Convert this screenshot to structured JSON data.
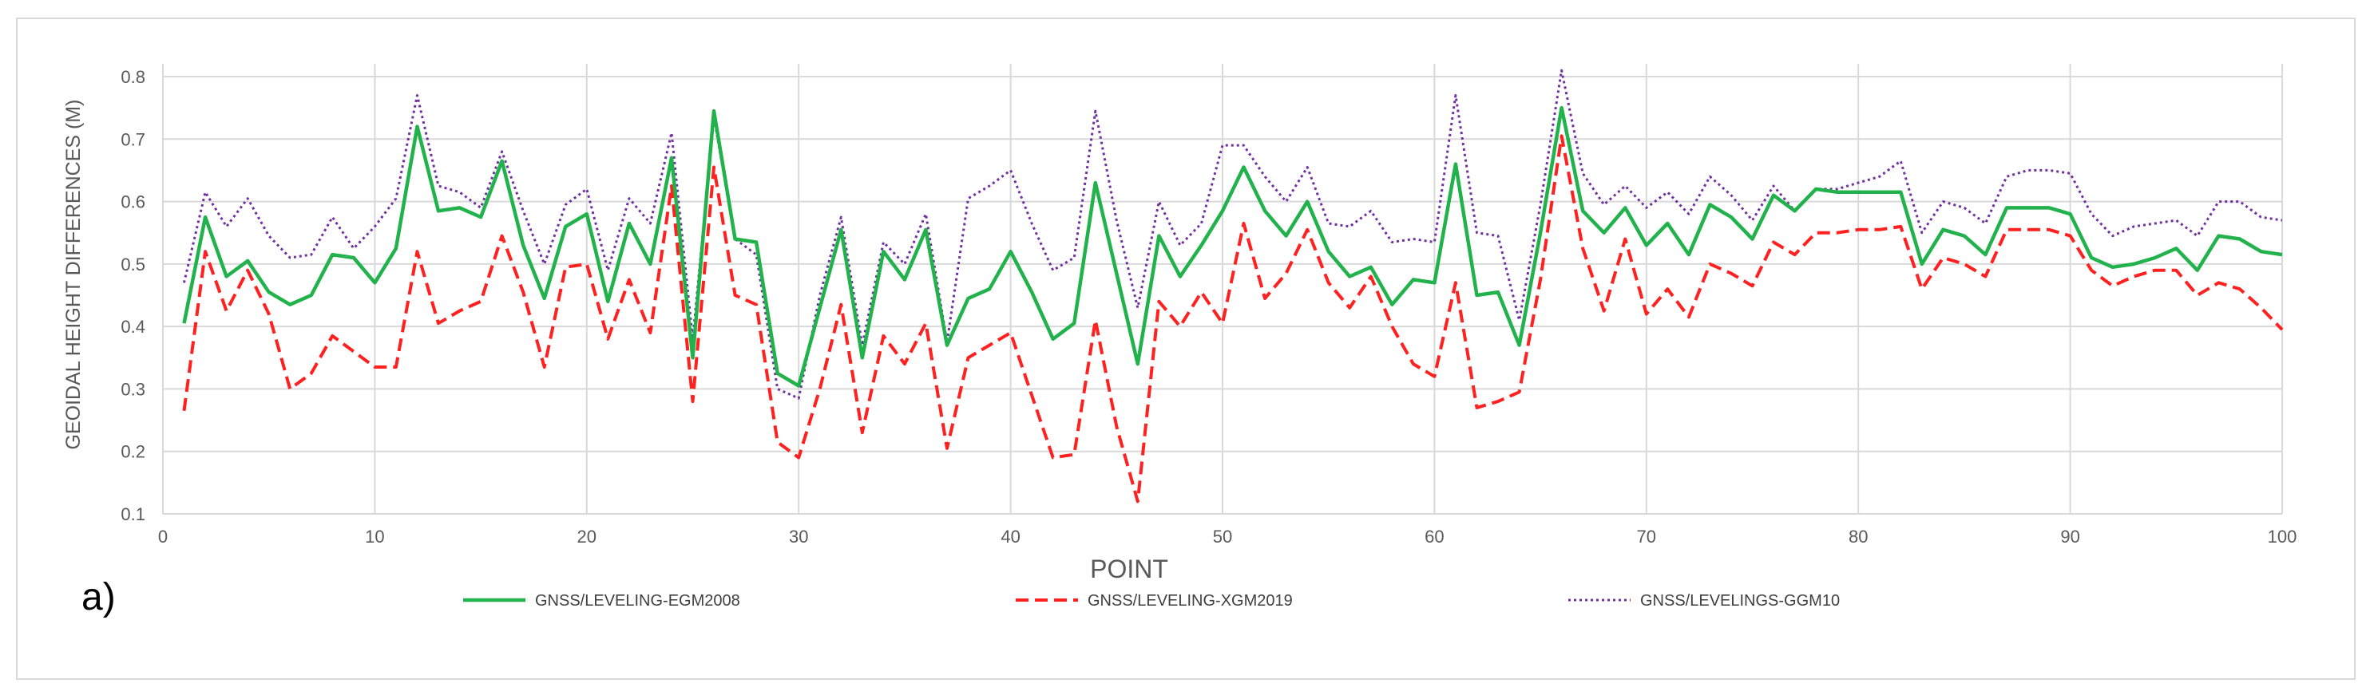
{
  "chart_data": {
    "type": "line",
    "panel_label": "a)",
    "xlabel": "POINT",
    "ylabel": "GEOIDAL HEIGHT DIFFERENCES (M)",
    "xlim": [
      0,
      100
    ],
    "ylim": [
      0.1,
      0.85
    ],
    "xticks": [
      0,
      10,
      20,
      30,
      40,
      50,
      60,
      70,
      80,
      90,
      100
    ],
    "yticks": [
      0.1,
      0.2,
      0.3,
      0.4,
      0.5,
      0.6,
      0.7,
      0.8
    ],
    "ytick_labels": [
      "0.1",
      "0.2",
      "0.3",
      "0.4",
      "0.5",
      "0.6",
      "0.7",
      "0.8"
    ],
    "grid": "horizontal and vertical",
    "legend_position": "bottom",
    "series": [
      {
        "name": "GNSS/LEVELING-EGM2008",
        "color": "#22b24c",
        "style": "solid",
        "x": [
          1,
          2,
          3,
          4,
          5,
          6,
          7,
          8,
          9,
          10,
          11,
          12,
          13,
          14,
          15,
          16,
          17,
          18,
          19,
          20,
          21,
          22,
          23,
          24,
          25,
          26,
          27,
          28,
          29,
          30,
          31,
          32,
          33,
          34,
          35,
          36,
          37,
          38,
          39,
          40,
          41,
          42,
          43,
          44,
          45,
          46,
          47,
          48,
          49,
          50,
          51,
          52,
          53,
          54,
          55,
          56,
          57,
          58,
          59,
          60,
          61,
          62,
          63,
          64,
          65,
          66,
          67,
          68,
          69,
          70,
          71,
          72,
          73,
          74,
          75,
          76,
          77,
          78,
          79,
          80,
          81,
          82,
          83,
          84,
          85,
          86,
          87,
          88,
          89,
          90,
          91,
          92,
          93,
          94,
          95,
          96,
          97,
          98,
          99,
          100
        ],
        "values": [
          0.405,
          0.575,
          0.48,
          0.505,
          0.455,
          0.435,
          0.45,
          0.515,
          0.51,
          0.47,
          0.525,
          0.72,
          0.585,
          0.59,
          0.575,
          0.665,
          0.53,
          0.445,
          0.56,
          0.58,
          0.44,
          0.565,
          0.5,
          0.67,
          0.35,
          0.745,
          0.54,
          0.535,
          0.325,
          0.305,
          0.43,
          0.555,
          0.35,
          0.52,
          0.475,
          0.555,
          0.37,
          0.445,
          0.46,
          0.52,
          0.455,
          0.38,
          0.405,
          0.63,
          0.485,
          0.34,
          0.545,
          0.48,
          0.53,
          0.585,
          0.655,
          0.585,
          0.545,
          0.6,
          0.52,
          0.48,
          0.495,
          0.435,
          0.475,
          0.47,
          0.66,
          0.45,
          0.455,
          0.37,
          0.55,
          0.75,
          0.585,
          0.55,
          0.59,
          0.53,
          0.565,
          0.515,
          0.595,
          0.575,
          0.54,
          0.61,
          0.585,
          0.62,
          0.615,
          0.615,
          0.615,
          0.615,
          0.5,
          0.555,
          0.545,
          0.515,
          0.59,
          0.59,
          0.59,
          0.58,
          0.51,
          0.495,
          0.5,
          0.51,
          0.525,
          0.49,
          0.545,
          0.54,
          0.52,
          0.515
        ]
      },
      {
        "name": "GNSS/LEVELING-XGM2019",
        "color": "#ff2020",
        "style": "dashed",
        "x": [
          1,
          2,
          3,
          4,
          5,
          6,
          7,
          8,
          9,
          10,
          11,
          12,
          13,
          14,
          15,
          16,
          17,
          18,
          19,
          20,
          21,
          22,
          23,
          24,
          25,
          26,
          27,
          28,
          29,
          30,
          31,
          32,
          33,
          34,
          35,
          36,
          37,
          38,
          39,
          40,
          41,
          42,
          43,
          44,
          45,
          46,
          47,
          48,
          49,
          50,
          51,
          52,
          53,
          54,
          55,
          56,
          57,
          58,
          59,
          60,
          61,
          62,
          63,
          64,
          65,
          66,
          67,
          68,
          69,
          70,
          71,
          72,
          73,
          74,
          75,
          76,
          77,
          78,
          79,
          80,
          81,
          82,
          83,
          84,
          85,
          86,
          87,
          88,
          89,
          90,
          91,
          92,
          93,
          94,
          95,
          96,
          97,
          98,
          99,
          100
        ],
        "values": [
          0.265,
          0.52,
          0.425,
          0.49,
          0.42,
          0.3,
          0.325,
          0.385,
          0.36,
          0.335,
          0.335,
          0.52,
          0.405,
          0.425,
          0.44,
          0.545,
          0.455,
          0.335,
          0.495,
          0.5,
          0.38,
          0.475,
          0.39,
          0.625,
          0.28,
          0.655,
          0.45,
          0.435,
          0.215,
          0.19,
          0.3,
          0.435,
          0.23,
          0.385,
          0.34,
          0.405,
          0.205,
          0.35,
          0.37,
          0.39,
          0.29,
          0.19,
          0.195,
          0.41,
          0.24,
          0.12,
          0.44,
          0.4,
          0.455,
          0.405,
          0.565,
          0.445,
          0.485,
          0.555,
          0.47,
          0.43,
          0.48,
          0.4,
          0.34,
          0.32,
          0.47,
          0.27,
          0.28,
          0.295,
          0.475,
          0.705,
          0.525,
          0.425,
          0.54,
          0.42,
          0.46,
          0.415,
          0.5,
          0.485,
          0.465,
          0.535,
          0.515,
          0.55,
          0.55,
          0.555,
          0.555,
          0.56,
          0.46,
          0.51,
          0.5,
          0.48,
          0.555,
          0.555,
          0.555,
          0.545,
          0.49,
          0.465,
          0.48,
          0.49,
          0.49,
          0.45,
          0.47,
          0.46,
          0.43,
          0.395
        ]
      },
      {
        "name": "GNSS/LEVELINGS-GGM10",
        "color": "#7030a0",
        "style": "dotted",
        "x": [
          1,
          2,
          3,
          4,
          5,
          6,
          7,
          8,
          9,
          10,
          11,
          12,
          13,
          14,
          15,
          16,
          17,
          18,
          19,
          20,
          21,
          22,
          23,
          24,
          25,
          26,
          27,
          28,
          29,
          30,
          31,
          32,
          33,
          34,
          35,
          36,
          37,
          38,
          39,
          40,
          41,
          42,
          43,
          44,
          45,
          46,
          47,
          48,
          49,
          50,
          51,
          52,
          53,
          54,
          55,
          56,
          57,
          58,
          59,
          60,
          61,
          62,
          63,
          64,
          65,
          66,
          67,
          68,
          69,
          70,
          71,
          72,
          73,
          74,
          75,
          76,
          77,
          78,
          79,
          80,
          81,
          82,
          83,
          84,
          85,
          86,
          87,
          88,
          89,
          90,
          91,
          92,
          93,
          94,
          95,
          96,
          97,
          98,
          99,
          100
        ],
        "values": [
          0.47,
          0.615,
          0.56,
          0.605,
          0.545,
          0.51,
          0.515,
          0.575,
          0.525,
          0.56,
          0.605,
          0.77,
          0.625,
          0.615,
          0.59,
          0.68,
          0.585,
          0.5,
          0.595,
          0.62,
          0.49,
          0.605,
          0.565,
          0.71,
          0.38,
          0.735,
          0.54,
          0.515,
          0.3,
          0.285,
          0.45,
          0.575,
          0.37,
          0.535,
          0.5,
          0.58,
          0.375,
          0.605,
          0.625,
          0.65,
          0.565,
          0.49,
          0.51,
          0.745,
          0.57,
          0.43,
          0.6,
          0.53,
          0.565,
          0.69,
          0.69,
          0.64,
          0.6,
          0.655,
          0.565,
          0.56,
          0.585,
          0.535,
          0.54,
          0.535,
          0.77,
          0.55,
          0.545,
          0.41,
          0.595,
          0.81,
          0.645,
          0.595,
          0.625,
          0.59,
          0.615,
          0.58,
          0.64,
          0.61,
          0.57,
          0.625,
          0.585,
          0.62,
          0.62,
          0.63,
          0.64,
          0.665,
          0.55,
          0.6,
          0.59,
          0.565,
          0.64,
          0.65,
          0.65,
          0.645,
          0.58,
          0.545,
          0.56,
          0.565,
          0.57,
          0.545,
          0.6,
          0.6,
          0.575,
          0.57
        ]
      }
    ]
  }
}
